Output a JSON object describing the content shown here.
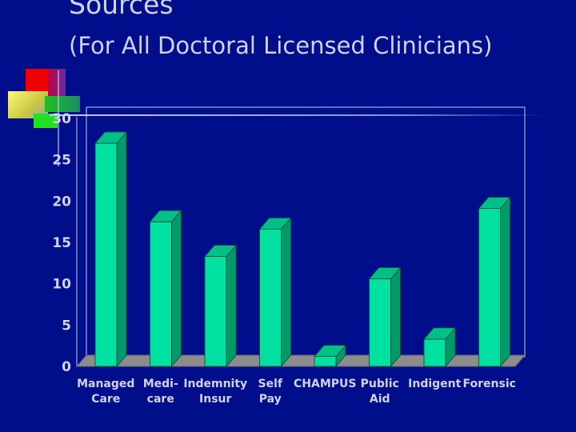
{
  "slide": {
    "title": "Sources",
    "subtitle": "(For All Doctoral Licensed Clinicians)"
  },
  "chart_data": {
    "type": "bar",
    "categories": [
      [
        "Managed",
        "Care"
      ],
      [
        "Medi-",
        "care"
      ],
      [
        "Indemnity",
        "Insur"
      ],
      [
        "Self",
        "Pay"
      ],
      [
        "CHAMPUS"
      ],
      [
        "Public",
        "Aid"
      ],
      [
        "Indigent"
      ],
      [
        "Forensic"
      ]
    ],
    "values": [
      27,
      17.5,
      13.3,
      16.6,
      1.2,
      10.6,
      3.3,
      19.1
    ],
    "ylim": [
      0,
      30
    ],
    "yticks": [
      0,
      5,
      10,
      15,
      20,
      25,
      30
    ],
    "grid": false,
    "style": "3d-column",
    "colors": {
      "bar_front": "#00e0a0",
      "bar_top": "#00c088",
      "bar_side": "#009a6a",
      "floor": "#8c8c8c",
      "text": "#cfd3ee",
      "background": "#000e8c"
    }
  }
}
